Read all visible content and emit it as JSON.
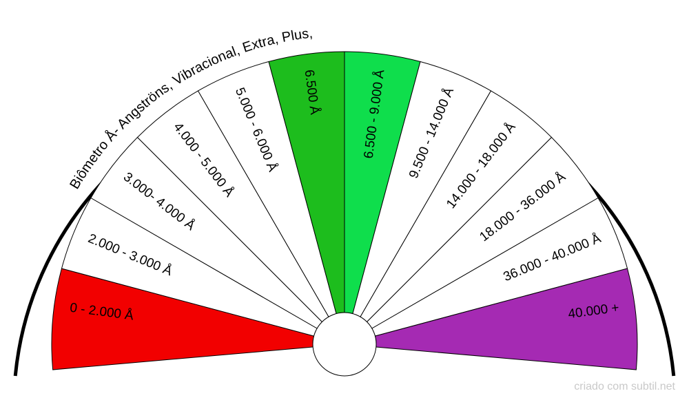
{
  "title": "Biômetro Å- Angströns, Vibracional, Extra, Plus,",
  "credit": "criado com subtil.net",
  "sectors": [
    {
      "label": "0 - 2.000  Å",
      "color": "#f20000"
    },
    {
      "label": "2.000 - 3.000 Å",
      "color": "#ffffff"
    },
    {
      "label": "3.000- 4.000 Å",
      "color": "#ffffff"
    },
    {
      "label": "4.000 - 5.000 Å",
      "color": "#ffffff"
    },
    {
      "label": "5.000 - 6.000 Å",
      "color": "#ffffff"
    },
    {
      "label": "6.500 Å",
      "color": "#1dbd1d"
    },
    {
      "label": "6.500 - 9.000 Å",
      "color": "#0fde4c"
    },
    {
      "label": "9.500 - 14.000 Å",
      "color": "#ffffff"
    },
    {
      "label": "14.000 - 18.000 Å",
      "color": "#ffffff"
    },
    {
      "label": "18.000 - 36.000 Å",
      "color": "#ffffff"
    },
    {
      "label": "36.000 - 40.000 Å",
      "color": "#ffffff"
    },
    {
      "label": "40.000 +",
      "color": "#a52ab3"
    }
  ]
}
